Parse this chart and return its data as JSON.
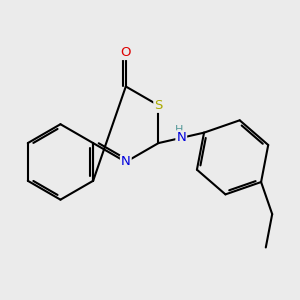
{
  "bg_color": "#ebebeb",
  "bond_color": "#000000",
  "bond_lw": 1.5,
  "atom_colors": {
    "N_ring": "#0000dd",
    "N_nh": "#0000dd",
    "H": "#559999",
    "S": "#aaaa00",
    "O": "#dd0000"
  },
  "font_size": 9.5,
  "dbo": 0.07
}
